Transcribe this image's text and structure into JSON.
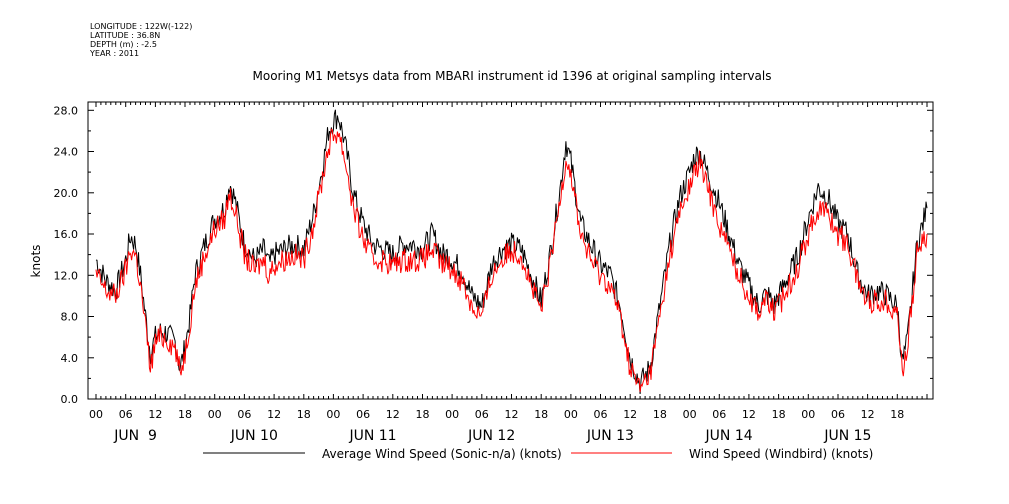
{
  "header": {
    "longitude": "LONGITUDE : 122W(-122)",
    "latitude": "LATITUDE : 36.8N",
    "depth": "DEPTH (m) : -2.5",
    "year": "YEAR : 2011"
  },
  "chart_data": {
    "type": "line",
    "title": "Mooring M1 Metsys data from MBARI instrument id 1396 at original sampling intervals",
    "xlabel": "",
    "ylabel": "knots",
    "ylim": [
      0,
      28.8
    ],
    "xlim_hours": [
      0,
      168
    ],
    "y_ticks": [
      "0.0",
      "4.0",
      "8.0",
      "12.0",
      "16.0",
      "20.0",
      "24.0",
      "28.0"
    ],
    "hour_tick_labels": [
      "00",
      "06",
      "12",
      "18"
    ],
    "day_labels": [
      "JUN  9",
      "JUN 10",
      "JUN 11",
      "JUN 12",
      "JUN 13",
      "JUN 14",
      "JUN 15"
    ],
    "legend_placement": "bottom",
    "grid": false,
    "series": [
      {
        "name": "Average Wind Speed (Sonic-n/a) (knots)",
        "color": "#000000",
        "x_hours": [
          0,
          2,
          4,
          6,
          7,
          8,
          9,
          10,
          11,
          12,
          13,
          14,
          16,
          17,
          18,
          19,
          20,
          22,
          24,
          26,
          27,
          28,
          30,
          32,
          34,
          35,
          36,
          38,
          40,
          42,
          44,
          46,
          47,
          48,
          49,
          50,
          51,
          52,
          54,
          56,
          58,
          60,
          62,
          64,
          66,
          68,
          70,
          71,
          72,
          74,
          76,
          78,
          80,
          82,
          84,
          86,
          88,
          90,
          92,
          94,
          95,
          96,
          97,
          98,
          100,
          102,
          104,
          106,
          108,
          110,
          112,
          114,
          116,
          118,
          120,
          121,
          122,
          124,
          126,
          128,
          130,
          132,
          134,
          135,
          136,
          137,
          138,
          140,
          142,
          144,
          146,
          148,
          150,
          152,
          154,
          156,
          158,
          160,
          162,
          163,
          164,
          166,
          168
        ],
        "values": [
          13.5,
          11.5,
          10.5,
          13.5,
          15.8,
          15,
          12,
          8,
          4.5,
          6,
          6.5,
          6.5,
          5.5,
          3,
          5,
          8,
          12,
          15,
          17.5,
          18.5,
          21,
          19.5,
          15,
          13.5,
          14.5,
          13,
          14,
          14.5,
          15,
          14.5,
          18,
          23,
          26,
          27,
          27.5,
          25.5,
          23,
          20,
          17,
          15,
          14.5,
          14,
          15,
          15,
          14.5,
          16,
          14,
          14,
          13.5,
          12.5,
          10,
          9,
          13,
          14.5,
          15,
          14.5,
          12,
          9.5,
          14.5,
          21,
          25,
          23,
          20,
          17,
          15,
          13,
          12,
          9,
          4,
          1.5,
          3,
          9,
          15,
          19.5,
          22,
          23.5,
          24,
          21.5,
          19,
          16,
          13,
          11,
          9,
          10,
          10,
          9,
          10,
          12,
          14,
          17.5,
          20.5,
          19.5,
          17,
          16,
          12,
          10,
          10.5,
          10,
          9,
          3.5,
          5.5,
          15,
          18.5
        ]
      },
      {
        "name": "Wind Speed (Windbird) (knots)",
        "color": "#ff0000",
        "x_hours": [
          0,
          2,
          4,
          6,
          7,
          8,
          9,
          10,
          11,
          12,
          13,
          14,
          16,
          17,
          18,
          19,
          20,
          22,
          24,
          26,
          27,
          28,
          30,
          32,
          34,
          35,
          36,
          38,
          40,
          42,
          44,
          46,
          47,
          48,
          49,
          50,
          51,
          52,
          54,
          56,
          58,
          60,
          62,
          64,
          66,
          68,
          70,
          71,
          72,
          74,
          76,
          78,
          80,
          82,
          84,
          86,
          88,
          90,
          92,
          94,
          95,
          96,
          97,
          98,
          100,
          102,
          104,
          106,
          108,
          110,
          112,
          114,
          116,
          118,
          120,
          121,
          122,
          124,
          126,
          128,
          130,
          132,
          134,
          135,
          136,
          137,
          138,
          140,
          142,
          144,
          146,
          148,
          150,
          152,
          154,
          156,
          158,
          160,
          162,
          163,
          164,
          166,
          168
        ],
        "values": [
          12,
          10.5,
          10,
          12.5,
          14.5,
          14,
          11,
          7,
          3,
          5.5,
          6,
          6,
          5,
          2.5,
          4.5,
          7.5,
          11,
          14,
          16.5,
          17.5,
          20,
          18.5,
          14,
          12.5,
          13.5,
          12,
          13,
          13.5,
          14,
          13.5,
          17,
          22,
          24.5,
          25.5,
          26,
          24,
          21.5,
          18.5,
          15.5,
          13.5,
          13.5,
          13,
          13.5,
          13.5,
          13.5,
          14.5,
          13,
          13,
          12.5,
          11.5,
          9,
          8,
          12,
          13.5,
          14.5,
          14,
          11,
          8.5,
          13.5,
          20,
          23.5,
          22,
          19,
          16,
          13.5,
          12,
          11,
          8,
          3,
          1,
          2.5,
          8,
          14,
          18,
          20.5,
          22,
          23,
          20,
          17,
          14.5,
          12,
          10,
          8.5,
          9.5,
          9.5,
          8.5,
          9,
          11,
          13,
          16,
          18.5,
          18,
          16,
          15,
          11.5,
          9.5,
          9.5,
          9.5,
          8.5,
          2.5,
          5,
          14,
          16
        ]
      }
    ]
  }
}
